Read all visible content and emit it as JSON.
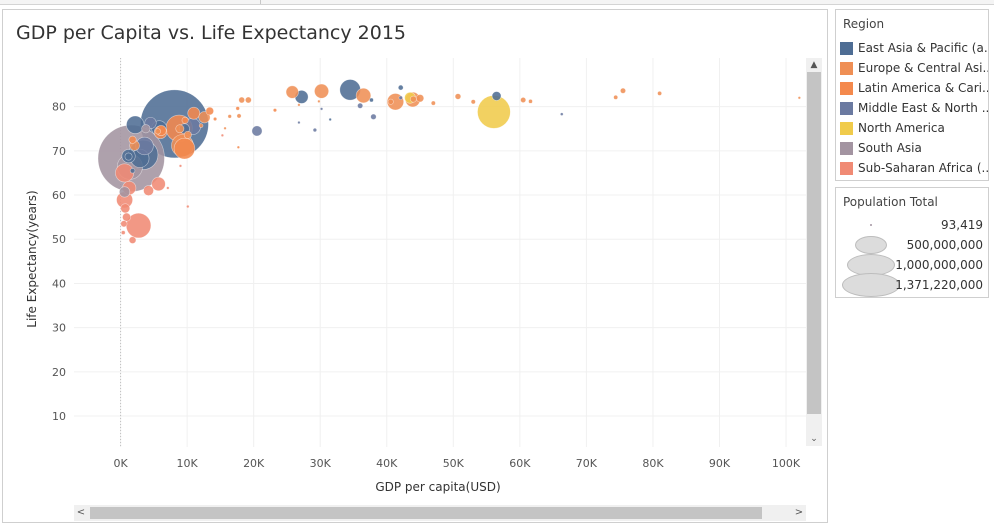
{
  "sheet": {
    "title": "GDP per Capita vs. Life Expectancy 2015"
  },
  "scrollbars": {
    "up_arrow": "▲",
    "down_arrow": "⌄",
    "left_arrow": "<",
    "right_arrow": ">"
  },
  "legends": {
    "region": {
      "title": "Region",
      "items": [
        {
          "label": "East Asia & Pacific (a...",
          "color": "#4e6d94"
        },
        {
          "label": "Europe & Central Asi...",
          "color": "#ef8f55"
        },
        {
          "label": "Latin America & Cari...",
          "color": "#f4894d"
        },
        {
          "label": "Middle East & North ...",
          "color": "#6b7aa1"
        },
        {
          "label": "North America",
          "color": "#f0cb4b"
        },
        {
          "label": "South Asia",
          "color": "#a394a1"
        },
        {
          "label": "Sub-Saharan Africa (...",
          "color": "#f08a74"
        }
      ]
    },
    "population": {
      "title": "Population Total",
      "items": [
        {
          "label": "93,419",
          "value": 93419
        },
        {
          "label": "500,000,000",
          "value": 500000000
        },
        {
          "label": "1,000,000,000",
          "value": 1000000000
        },
        {
          "label": "1,371,220,000",
          "value": 1371220000
        }
      ]
    }
  },
  "chart_data": {
    "type": "scatter",
    "title": "GDP per Capita vs. Life Expectancy 2015",
    "xlabel": "GDP per capita(USD)",
    "ylabel": "Life Expectancy(years)",
    "xlim": [
      -7000,
      103000
    ],
    "ylim": [
      3,
      91
    ],
    "x_ticks": [
      0,
      10000,
      20000,
      30000,
      40000,
      50000,
      60000,
      70000,
      80000,
      90000,
      100000
    ],
    "x_tick_labels": [
      "0K",
      "10K",
      "20K",
      "30K",
      "40K",
      "50K",
      "60K",
      "70K",
      "80K",
      "90K",
      "100K"
    ],
    "y_ticks": [
      10,
      20,
      30,
      40,
      50,
      60,
      70,
      80
    ],
    "y_tick_labels": [
      "10",
      "20",
      "30",
      "40",
      "50",
      "60",
      "70",
      "80"
    ],
    "grid": true,
    "size_encoding": "Population Total",
    "color_encoding": "Region",
    "points": [
      {
        "region": "South Asia",
        "x": 1600,
        "y": 68.3,
        "pop": 1311000000
      },
      {
        "region": "East Asia & Pacific (a...",
        "x": 8100,
        "y": 76.1,
        "pop": 1371220000
      },
      {
        "region": "North America",
        "x": 56100,
        "y": 78.8,
        "pop": 321000000
      },
      {
        "region": "East Asia & Pacific (a...",
        "x": 3400,
        "y": 69.1,
        "pop": 258000000
      },
      {
        "region": "Latin America & Cari...",
        "x": 9600,
        "y": 70.5,
        "pop": 128000000
      },
      {
        "region": "Latin America & Cari...",
        "x": 8800,
        "y": 75.1,
        "pop": 207000000
      },
      {
        "region": "Sub-Saharan Africa (...",
        "x": 2700,
        "y": 53.1,
        "pop": 182000000
      },
      {
        "region": "East Asia & Pacific (a...",
        "x": 34500,
        "y": 83.8,
        "pop": 127000000
      },
      {
        "region": "South Asia",
        "x": 1400,
        "y": 66.4,
        "pop": 189000000
      },
      {
        "region": "East Asia & Pacific (a...",
        "x": 2200,
        "y": 75.9,
        "pop": 92000000
      },
      {
        "region": "East Asia & Pacific (a...",
        "x": 2900,
        "y": 68.3,
        "pop": 100000000
      },
      {
        "region": "Europe & Central Asi...",
        "x": 41300,
        "y": 81.1,
        "pop": 81000000
      },
      {
        "region": "Europe & Central Asi...",
        "x": 43900,
        "y": 81.6,
        "pop": 65000000
      },
      {
        "region": "Europe & Central Asi...",
        "x": 36500,
        "y": 82.5,
        "pop": 64000000
      },
      {
        "region": "Europe & Central Asi...",
        "x": 30200,
        "y": 83.5,
        "pop": 60000000
      },
      {
        "region": "Europe & Central Asi...",
        "x": 25800,
        "y": 83.3,
        "pop": 46000000
      },
      {
        "region": "East Asia & Pacific (a...",
        "x": 27200,
        "y": 82.2,
        "pop": 51000000
      },
      {
        "region": "East Asia & Pacific (a...",
        "x": 56500,
        "y": 82.4,
        "pop": 24000000
      },
      {
        "region": "Europe & Central Asi...",
        "x": 9300,
        "y": 71.2,
        "pop": 144000000
      },
      {
        "region": "Middle East & North ...",
        "x": 10800,
        "y": 75.5,
        "pop": 79000000
      },
      {
        "region": "Middle East & North ...",
        "x": 3600,
        "y": 71.1,
        "pop": 92000000
      },
      {
        "region": "Sub-Saharan Africa (...",
        "x": 600,
        "y": 65.0,
        "pop": 99000000
      },
      {
        "region": "Sub-Saharan Africa (...",
        "x": 1300,
        "y": 61.6,
        "pop": 53000000
      },
      {
        "region": "Sub-Saharan Africa (...",
        "x": 4200,
        "y": 61.0,
        "pop": 30000000
      },
      {
        "region": "Sub-Saharan Africa (...",
        "x": 600,
        "y": 58.9,
        "pop": 77000000
      },
      {
        "region": "Sub-Saharan Africa (...",
        "x": 700,
        "y": 57.0,
        "pop": 25000000
      },
      {
        "region": "Sub-Saharan Africa (...",
        "x": 900,
        "y": 55.0,
        "pop": 20000000
      },
      {
        "region": "Sub-Saharan Africa (...",
        "x": 500,
        "y": 53.5,
        "pop": 12000000
      },
      {
        "region": "Sub-Saharan Africa (...",
        "x": 400,
        "y": 51.5,
        "pop": 4500000
      },
      {
        "region": "Sub-Saharan Africa (...",
        "x": 1800,
        "y": 49.8,
        "pop": 14000000
      },
      {
        "region": "Sub-Saharan Africa (...",
        "x": 5700,
        "y": 62.5,
        "pop": 55000000
      },
      {
        "region": "Latin America & Cari...",
        "x": 11000,
        "y": 78.5,
        "pop": 43000000
      },
      {
        "region": "Latin America & Cari...",
        "x": 13400,
        "y": 79.0,
        "pop": 18000000
      },
      {
        "region": "Latin America & Cari...",
        "x": 6000,
        "y": 74.2,
        "pop": 48000000
      },
      {
        "region": "Latin America & Cari...",
        "x": 6100,
        "y": 74.6,
        "pop": 31000000
      },
      {
        "region": "Latin America & Cari...",
        "x": 14200,
        "y": 77.2,
        "pop": 3400000
      },
      {
        "region": "Latin America & Cari...",
        "x": 17600,
        "y": 79.6,
        "pop": 4000000
      },
      {
        "region": "Latin America & Cari...",
        "x": 1800,
        "y": 72.5,
        "pop": 16000000
      },
      {
        "region": "Latin America & Cari...",
        "x": 9700,
        "y": 76.9,
        "pop": 12000000
      },
      {
        "region": "Middle East & North ...",
        "x": 20500,
        "y": 74.5,
        "pop": 31000000
      },
      {
        "region": "Middle East & North ...",
        "x": 36000,
        "y": 80.2,
        "pop": 8400000
      },
      {
        "region": "Middle East & North ...",
        "x": 38000,
        "y": 77.7,
        "pop": 9100000
      },
      {
        "region": "Middle East & North ...",
        "x": 66300,
        "y": 78.3,
        "pop": 2500000
      },
      {
        "region": "Middle East & North ...",
        "x": 29200,
        "y": 74.7,
        "pop": 3900000
      },
      {
        "region": "Middle East & North ...",
        "x": 42100,
        "y": 82.0,
        "pop": 4000000
      },
      {
        "region": "East Asia & Pacific (a...",
        "x": 42100,
        "y": 84.3,
        "pop": 7300000
      },
      {
        "region": "East Asia & Pacific (a...",
        "x": 37700,
        "y": 81.5,
        "pop": 4600000
      },
      {
        "region": "Europe & Central Asi...",
        "x": 47000,
        "y": 80.8,
        "pop": 5400000
      },
      {
        "region": "Europe & Central Asi...",
        "x": 50700,
        "y": 82.3,
        "pop": 9800000
      },
      {
        "region": "Europe & Central Asi...",
        "x": 53000,
        "y": 81.1,
        "pop": 5700000
      },
      {
        "region": "Europe & Central Asi...",
        "x": 60500,
        "y": 81.5,
        "pop": 8300000
      },
      {
        "region": "Europe & Central Asi...",
        "x": 75500,
        "y": 83.6,
        "pop": 8300000
      },
      {
        "region": "Europe & Central Asi...",
        "x": 81000,
        "y": 83.0,
        "pop": 5200000
      },
      {
        "region": "Europe & Central Asi...",
        "x": 74400,
        "y": 82.1,
        "pop": 5200000
      },
      {
        "region": "Europe & Central Asi...",
        "x": 61600,
        "y": 81.2,
        "pop": 4600000
      },
      {
        "region": "Europe & Central Asi...",
        "x": 102000,
        "y": 82.0,
        "pop": 570000
      },
      {
        "region": "Europe & Central Asi...",
        "x": 45000,
        "y": 81.9,
        "pop": 17000000
      },
      {
        "region": "Europe & Central Asi...",
        "x": 44000,
        "y": 81.7,
        "pop": 11300000
      },
      {
        "region": "Europe & Central Asi...",
        "x": 40600,
        "y": 81.1,
        "pop": 8600000
      },
      {
        "region": "Europe & Central Asi...",
        "x": 18200,
        "y": 81.5,
        "pop": 10300000
      },
      {
        "region": "Europe & Central Asi...",
        "x": 19200,
        "y": 81.5,
        "pop": 10800000
      },
      {
        "region": "Europe & Central Asi...",
        "x": 12600,
        "y": 77.6,
        "pop": 38000000
      },
      {
        "region": "Europe & Central Asi...",
        "x": 16400,
        "y": 77.8,
        "pop": 3800000
      },
      {
        "region": "Europe & Central Asi...",
        "x": 12100,
        "y": 75.7,
        "pop": 4300000
      },
      {
        "region": "Europe & Central Asi...",
        "x": 15700,
        "y": 75.1,
        "pop": 2000000
      },
      {
        "region": "Europe & Central Asi...",
        "x": 8900,
        "y": 75.0,
        "pop": 19800000
      },
      {
        "region": "Europe & Central Asi...",
        "x": 17800,
        "y": 77.9,
        "pop": 5400000
      },
      {
        "region": "Europe & Central Asi...",
        "x": 10100,
        "y": 73.6,
        "pop": 16000000
      },
      {
        "region": "Europe & Central Asi...",
        "x": 2100,
        "y": 71.2,
        "pop": 29000000
      },
      {
        "region": "Europe & Central Asi...",
        "x": 5600,
        "y": 74.4,
        "pop": 9500000
      },
      {
        "region": "East Asia & Pacific (a...",
        "x": 9600,
        "y": 75.0,
        "pop": 30000000
      },
      {
        "region": "East Asia & Pacific (a...",
        "x": 5800,
        "y": 75.1,
        "pop": 68000000
      },
      {
        "region": "East Asia & Pacific (a...",
        "x": 1200,
        "y": 68.8,
        "pop": 53000000
      },
      {
        "region": "East Asia & Pacific (a...",
        "x": 1800,
        "y": 65.5,
        "pop": 6700000
      },
      {
        "region": "East Asia & Pacific (a...",
        "x": 1200,
        "y": 68.7,
        "pop": 15500000
      },
      {
        "region": "South Asia",
        "x": 600,
        "y": 60.7,
        "pop": 33000000
      },
      {
        "region": "South Asia",
        "x": 3800,
        "y": 75.0,
        "pop": 21000000
      },
      {
        "region": "Middle East & North ...",
        "x": 4500,
        "y": 76.3,
        "pop": 39000000
      },
      {
        "region": "Sub-Saharan Africa (...",
        "x": 10100,
        "y": 57.4,
        "pop": 2200000
      },
      {
        "region": "Sub-Saharan Africa (...",
        "x": 7100,
        "y": 61.6,
        "pop": 2100000
      },
      {
        "region": "Sub-Saharan Africa (...",
        "x": 9000,
        "y": 66.6,
        "pop": 1300000
      },
      {
        "region": "Sub-Saharan Africa (...",
        "x": 15300,
        "y": 73.5,
        "pop": 93419
      },
      {
        "region": "North America",
        "x": 43500,
        "y": 82.0,
        "pop": 35800000
      },
      {
        "region": "Latin America & Cari...",
        "x": 23200,
        "y": 79.2,
        "pop": 3500000
      },
      {
        "region": "Middle East & North ...",
        "x": 26800,
        "y": 76.4,
        "pop": 600000
      },
      {
        "region": "Middle East & North ...",
        "x": 30200,
        "y": 79.5,
        "pop": 600000
      },
      {
        "region": "Europe & Central Asi...",
        "x": 29800,
        "y": 81.2,
        "pop": 500000
      },
      {
        "region": "Europe & Central Asi...",
        "x": 26800,
        "y": 80.4,
        "pop": 800000
      },
      {
        "region": "East Asia & Pacific (a...",
        "x": 31500,
        "y": 77.1,
        "pop": 400000
      },
      {
        "region": "Latin America & Cari...",
        "x": 17700,
        "y": 70.8,
        "pop": 300000
      }
    ]
  }
}
